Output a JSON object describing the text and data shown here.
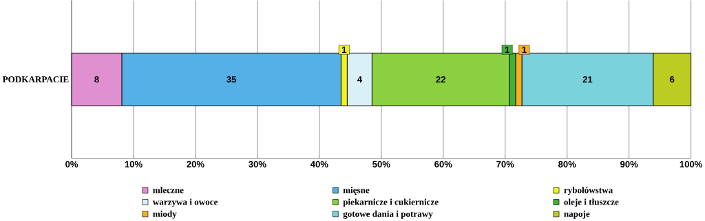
{
  "chart_data": {
    "type": "bar",
    "orientation": "horizontal",
    "stacked": true,
    "categories": [
      "PODKARPACIE"
    ],
    "series": [
      {
        "name": "mleczne",
        "color": "#e08fd0",
        "values": [
          8.1
        ],
        "value_labels": [
          "8"
        ]
      },
      {
        "name": "mięsne",
        "color": "#56b0e8",
        "values": [
          35.4
        ],
        "value_labels": [
          "35"
        ]
      },
      {
        "name": "rybołówstwa",
        "color": "#f2f020",
        "values": [
          1.0
        ],
        "value_labels": [
          "1"
        ]
      },
      {
        "name": "warzywa i owoce",
        "color": "#d8f0f6",
        "values": [
          4.0
        ],
        "value_labels": [
          "4"
        ]
      },
      {
        "name": "piekarnicze i cukiernicze",
        "color": "#8ad040",
        "values": [
          22.2
        ],
        "value_labels": [
          "22"
        ]
      },
      {
        "name": "oleje i tłuszcze",
        "color": "#44b038",
        "values": [
          1.0
        ],
        "value_labels": [
          "1"
        ]
      },
      {
        "name": "miody",
        "color": "#f8b020",
        "values": [
          1.0
        ],
        "value_labels": [
          "1"
        ]
      },
      {
        "name": "gotowe dania i potrawy",
        "color": "#7ad2dc",
        "values": [
          21.2
        ],
        "value_labels": [
          "21"
        ]
      },
      {
        "name": "napoje",
        "color": "#bccc20",
        "values": [
          6.1
        ],
        "value_labels": [
          "6"
        ]
      }
    ],
    "xlim": [
      0,
      100
    ],
    "xticks": [
      {
        "value": 0,
        "label": "0%"
      },
      {
        "value": 10,
        "label": "10%"
      },
      {
        "value": 20,
        "label": "20%"
      },
      {
        "value": 30,
        "label": "30%"
      },
      {
        "value": 40,
        "label": "40%"
      },
      {
        "value": 50,
        "label": "50%"
      },
      {
        "value": 60,
        "label": "60%"
      },
      {
        "value": 70,
        "label": "70%"
      },
      {
        "value": 80,
        "label": "80%"
      },
      {
        "value": 90,
        "label": "90%"
      },
      {
        "value": 100,
        "label": "100%"
      }
    ],
    "grid": "x",
    "legend": "bottom"
  }
}
